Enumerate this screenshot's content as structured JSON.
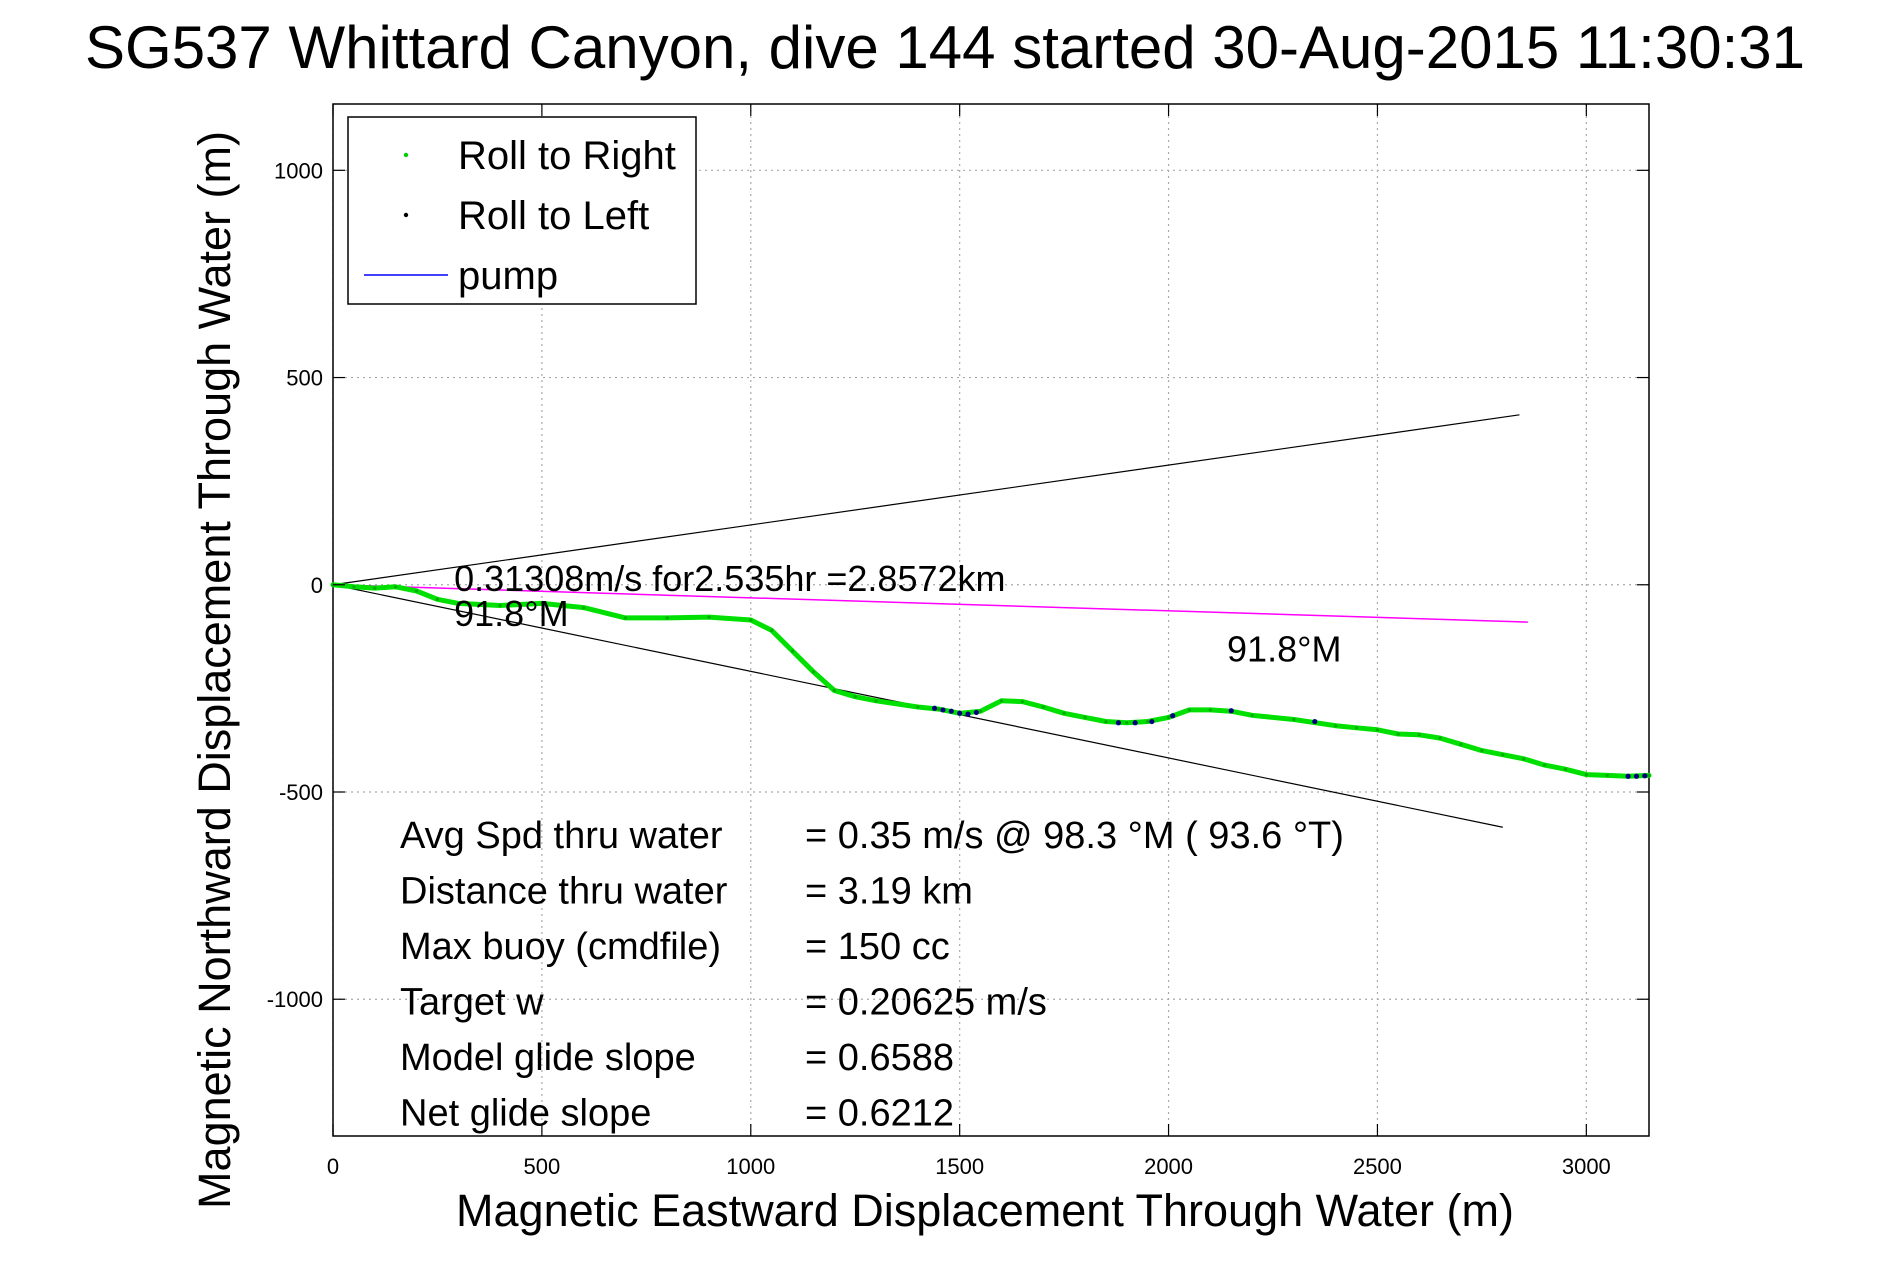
{
  "chart_data": {
    "type": "line",
    "title": "SG537 Whittard Canyon, dive 144 started 30-Aug-2015 11:30:31",
    "xlabel": "Magnetic Eastward Displacement Through Water (m)",
    "ylabel": "Magnetic Northward Displacement Through Water (m)",
    "xlim": [
      0,
      3150
    ],
    "ylim": [
      -1330,
      1160
    ],
    "xticks": [
      0,
      500,
      1000,
      1500,
      2000,
      2500,
      3000
    ],
    "yticks": [
      -1000,
      -500,
      0,
      500,
      1000
    ],
    "xtick_labels": [
      "0",
      "500",
      "1000",
      "1500",
      "2000",
      "2500",
      "3000"
    ],
    "ytick_labels": [
      "-1000",
      "-500",
      "0",
      "500",
      "1000"
    ],
    "grid": true,
    "legend_position": "top-left",
    "colors": {
      "roll_right": "#00e000",
      "roll_left": "#000080",
      "pump": "#ff00ff",
      "pump_legend": "#0000ff",
      "reference_lines": "#000000"
    },
    "legend": [
      {
        "label": "Roll to Right",
        "marker": "dot",
        "color": "#00cc00"
      },
      {
        "label": "Roll to Left",
        "marker": "dot",
        "color": "#000000"
      },
      {
        "label": "pump",
        "marker": "line",
        "color": "#0000ff"
      }
    ],
    "series": [
      {
        "name": "Roll to Right",
        "x": [
          0,
          50,
          100,
          150,
          200,
          250,
          300,
          400,
          500,
          600,
          700,
          800,
          900,
          1000,
          1050,
          1100,
          1150,
          1200,
          1250,
          1300,
          1400,
          1450,
          1500,
          1550,
          1600,
          1650,
          1700,
          1750,
          1800,
          1850,
          1900,
          1950,
          2000,
          2050,
          2100,
          2150,
          2200,
          2300,
          2400,
          2450,
          2500,
          2550,
          2600,
          2650,
          2700,
          2750,
          2800,
          2850,
          2900,
          2950,
          3000,
          3050,
          3100,
          3150
        ],
        "y": [
          0,
          -5,
          -8,
          -5,
          -15,
          -35,
          -45,
          -50,
          -45,
          -55,
          -80,
          -80,
          -78,
          -85,
          -110,
          -160,
          -210,
          -255,
          -270,
          -280,
          -295,
          -300,
          -310,
          -305,
          -280,
          -282,
          -295,
          -310,
          -320,
          -330,
          -333,
          -330,
          -320,
          -302,
          -302,
          -305,
          -315,
          -325,
          -340,
          -345,
          -350,
          -360,
          -362,
          -370,
          -385,
          -400,
          -410,
          -420,
          -435,
          -445,
          -458,
          -460,
          -462,
          -460
        ]
      },
      {
        "name": "Roll to Left",
        "x": [
          1440,
          1460,
          1480,
          1500,
          1520,
          1540,
          1880,
          1920,
          1960,
          2010,
          2150,
          2350,
          3100,
          3120,
          3140
        ],
        "y": [
          -298,
          -302,
          -305,
          -310,
          -312,
          -308,
          -333,
          -333,
          -330,
          -316,
          -304,
          -330,
          -462,
          -462,
          -461
        ]
      },
      {
        "name": "pump",
        "x": [
          0,
          2860
        ],
        "y": [
          0,
          -90
        ]
      }
    ],
    "reference_lines": [
      {
        "x": [
          0,
          2840
        ],
        "y": [
          0,
          410
        ]
      },
      {
        "x": [
          0,
          2800
        ],
        "y": [
          0,
          -585
        ]
      }
    ],
    "annotations": [
      {
        "text": "0.31308m/s for2.535hr =2.8572km",
        "x": 290,
        "y": -15
      },
      {
        "text": "91.8°M",
        "x": 290,
        "y": -100
      },
      {
        "text": "91.8°M",
        "x": 2140,
        "y": -185
      }
    ],
    "stats": [
      {
        "label": "Avg Spd thru water",
        "value": "=  0.35 m/s @  98.3 °M ( 93.6 °T)"
      },
      {
        "label": "Distance thru water",
        "value": "=  3.19 km"
      },
      {
        "label": "Max buoy (cmdfile)",
        "value": "= 150 cc"
      },
      {
        "label": "Target w",
        "value": "= 0.20625 m/s"
      },
      {
        "label": "Model glide slope",
        "value": "= 0.6588"
      },
      {
        "label": "Net glide slope",
        "value": "= 0.6212"
      }
    ]
  }
}
